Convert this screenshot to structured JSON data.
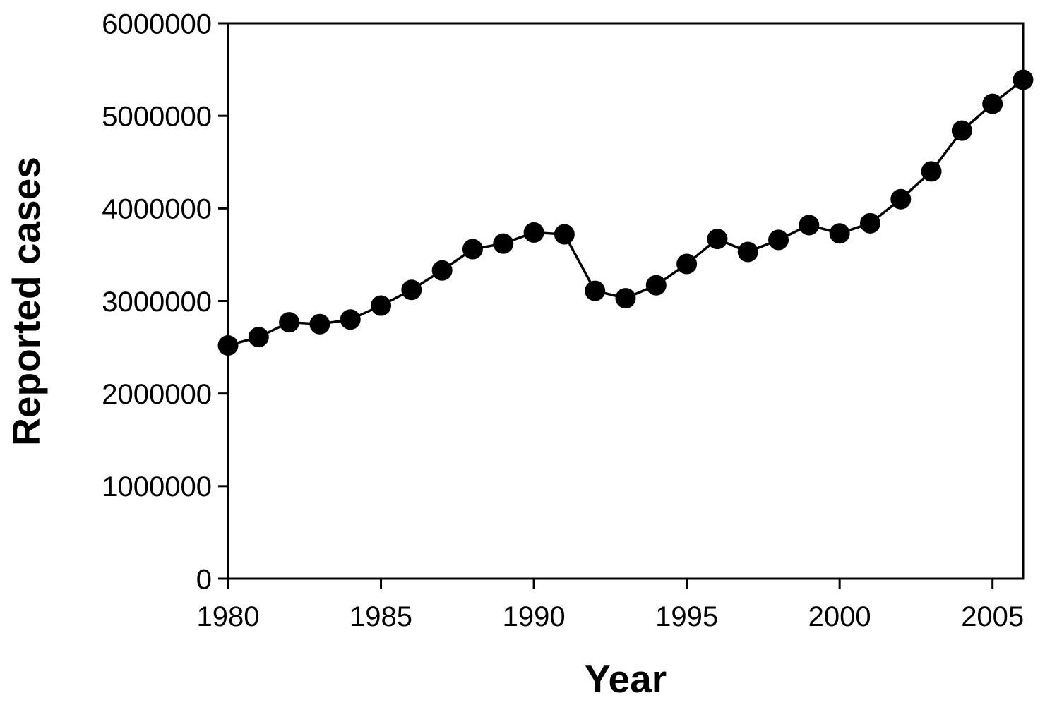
{
  "figure": {
    "background_color": "#ffffff",
    "axis_color": "#000000",
    "text_color": "#000000"
  },
  "chart_data": {
    "type": "line",
    "title": "",
    "xlabel": "Year",
    "ylabel": "Reported cases",
    "x": [
      1980,
      1981,
      1982,
      1983,
      1984,
      1985,
      1986,
      1987,
      1988,
      1989,
      1990,
      1991,
      1992,
      1993,
      1994,
      1995,
      1996,
      1997,
      1998,
      1999,
      2000,
      2001,
      2002,
      2003,
      2004,
      2005,
      2006
    ],
    "values": [
      2520000,
      2610000,
      2770000,
      2750000,
      2800000,
      2950000,
      3120000,
      3330000,
      3560000,
      3620000,
      3740000,
      3720000,
      3110000,
      3030000,
      3170000,
      3400000,
      3670000,
      3530000,
      3660000,
      3820000,
      3730000,
      3840000,
      4100000,
      4400000,
      4840000,
      5130000,
      5390000
    ],
    "xlim": [
      1980,
      2006
    ],
    "ylim": [
      0,
      6000000
    ],
    "xticks": [
      1980,
      1985,
      1990,
      1995,
      2000,
      2005
    ],
    "yticks": [
      0,
      1000000,
      2000000,
      3000000,
      4000000,
      5000000,
      6000000
    ],
    "grid": false,
    "legend": false,
    "frame": "full-box",
    "marker": "filled-circle",
    "line_color": "#000000",
    "marker_color": "#000000"
  }
}
